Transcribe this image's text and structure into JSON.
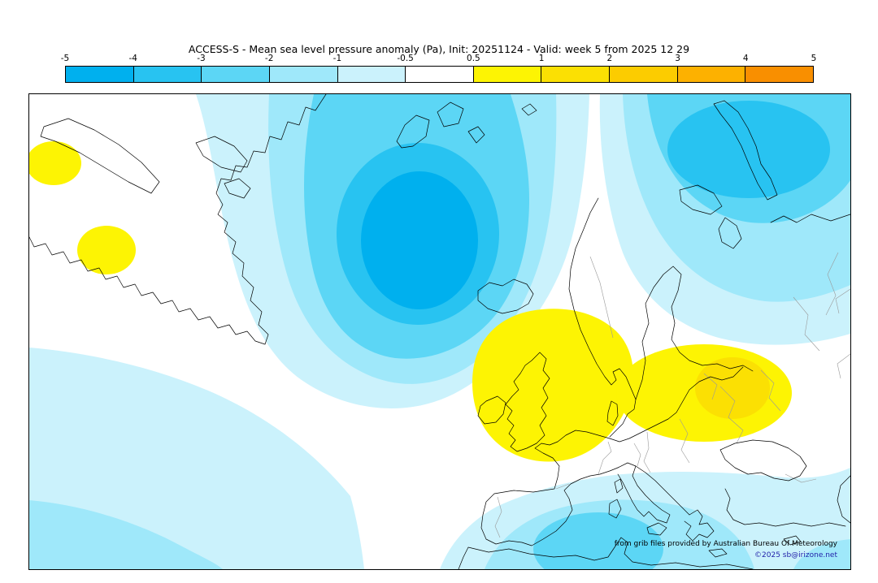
{
  "title": "ACCESS-S - Mean sea level pressure anomaly (Pa), Init: 20251124 - Valid: week 5 from 2025 12 29",
  "colorbar": {
    "ticks": [
      "-5",
      "-4",
      "-3",
      "-2",
      "-1",
      "-0.5",
      "0.5",
      "1",
      "2",
      "3",
      "4",
      "5"
    ],
    "colors": [
      "#00b0ee",
      "#28c3f1",
      "#5cd6f5",
      "#9fe8fa",
      "#cbf2fc",
      "#ffffff",
      "#fdf403",
      "#fbe003",
      "#fccc00",
      "#fdb100",
      "#f98f00"
    ]
  },
  "map": {
    "credit_source": "from grib files provided by Australian Bureau Of Meteorology",
    "credit_copyright": "©2025 sb@irizone.net"
  },
  "palette": {
    "anom_n1": "#cbf2fc",
    "anom_n2": "#9fe8fa",
    "anom_n3": "#5cd6f5",
    "anom_n4": "#28c3f1",
    "anom_n5": "#00b0ee",
    "anom_p1": "#fdf403",
    "anom_p2": "#fbe003",
    "coast": "#000000",
    "border": "#9a9a9a",
    "credit_text": "#000000",
    "credit_link": "#2222aa"
  }
}
